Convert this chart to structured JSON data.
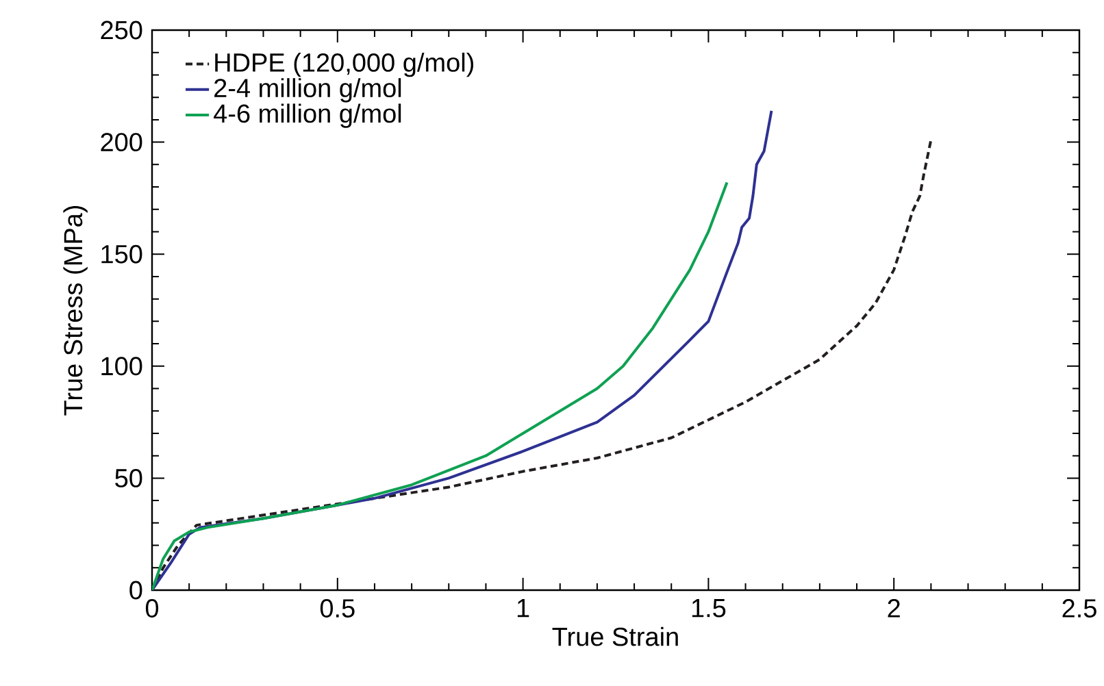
{
  "chart_data": {
    "type": "line",
    "xlabel": "True Strain",
    "ylabel": "True Stress (MPa)",
    "xlim": [
      0,
      2.5
    ],
    "ylim": [
      0,
      250
    ],
    "xticks": [
      0,
      0.5,
      1,
      1.5,
      2,
      2.5
    ],
    "yticks": [
      0,
      50,
      100,
      150,
      200,
      250
    ],
    "grid": false,
    "legend": "top left",
    "marker": "none",
    "series": [
      {
        "name": "HDPE (120,000 g/mol)",
        "color": "#231f20",
        "line_style": "dashed",
        "x": [
          0,
          0.03,
          0.07,
          0.12,
          0.2,
          0.4,
          0.6,
          0.8,
          1.0,
          1.2,
          1.4,
          1.6,
          1.8,
          1.9,
          1.95,
          2.0,
          2.03,
          2.05,
          2.07,
          2.08,
          2.1
        ],
        "values": [
          0,
          10,
          20,
          29,
          31,
          36,
          41,
          46,
          53,
          59,
          68,
          84,
          103,
          118,
          128,
          143,
          158,
          169,
          176,
          185,
          201
        ]
      },
      {
        "name": "2-4 million g/mol",
        "color": "#2e3192",
        "line_style": "solid",
        "x": [
          0,
          0.05,
          0.1,
          0.13,
          0.3,
          0.5,
          0.6,
          0.8,
          1.0,
          1.2,
          1.3,
          1.44,
          1.5,
          1.55,
          1.58,
          1.59,
          1.61,
          1.62,
          1.63,
          1.65,
          1.66,
          1.67
        ],
        "values": [
          0,
          12,
          25,
          28,
          32,
          38,
          41,
          50,
          62,
          75,
          87,
          110,
          120,
          142,
          155,
          162,
          166,
          176,
          190,
          196,
          205,
          214
        ]
      },
      {
        "name": "4-6 million g/mol",
        "color": "#0fa153",
        "line_style": "solid",
        "x": [
          0,
          0.03,
          0.06,
          0.1,
          0.15,
          0.3,
          0.5,
          0.7,
          0.9,
          1.0,
          1.1,
          1.2,
          1.27,
          1.35,
          1.45,
          1.5,
          1.55
        ],
        "values": [
          0,
          14,
          22,
          26,
          28,
          32,
          38,
          47,
          60,
          70,
          80,
          90,
          100,
          117,
          143,
          160,
          182
        ]
      }
    ]
  }
}
